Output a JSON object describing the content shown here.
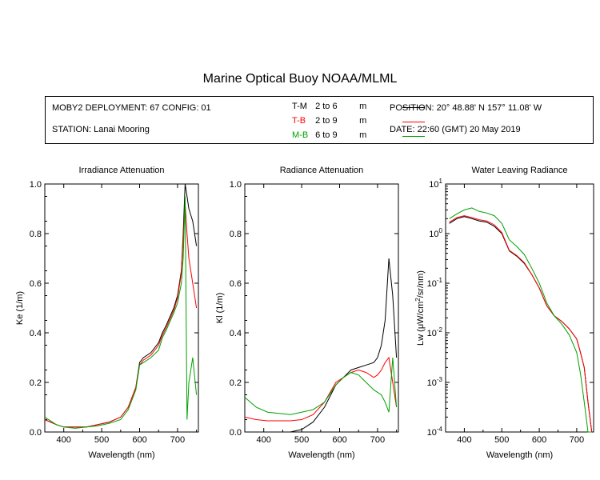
{
  "title": "Marine Optical Buoy NOAA/MLML",
  "info": {
    "deployment": "MOBY2 DEPLOYMENT: 67 CONFIG: 01",
    "station": "STATION: Lanai Mooring",
    "position": "POSITION: 20° 48.88' N   157° 11.08' W",
    "date": "DATE: 22:60 (GMT) 20 May 2019"
  },
  "legend": [
    {
      "code": "T-M",
      "range": "2 to 6",
      "unit": "m",
      "color": "#000000"
    },
    {
      "code": "T-B",
      "range": "2 to 9",
      "unit": "m",
      "color": "#ff0000"
    },
    {
      "code": "M-B",
      "range": "6 to 9",
      "unit": "m",
      "color": "#00a000"
    }
  ],
  "chart_data": [
    {
      "type": "line",
      "title": "Irradiance Attenuation",
      "xlabel": "Wavelength (nm)",
      "ylabel": "Ke  (1/m)",
      "xlim": [
        350,
        755
      ],
      "ylim": [
        0,
        1.0
      ],
      "xticks": [
        400,
        500,
        600,
        700
      ],
      "yticks": [
        0.0,
        0.2,
        0.4,
        0.6,
        0.8,
        1.0
      ],
      "yticklabels": [
        "0.0",
        "0.2",
        "0.4",
        "0.6",
        "0.8",
        "1.0"
      ],
      "series": [
        {
          "name": "T-M",
          "color": "#000000",
          "x": [
            350,
            380,
            400,
            430,
            460,
            490,
            520,
            550,
            570,
            590,
            600,
            610,
            630,
            650,
            660,
            670,
            690,
            700,
            710,
            715,
            720,
            725,
            730,
            740,
            750
          ],
          "y": [
            0.05,
            0.03,
            0.02,
            0.02,
            0.02,
            0.03,
            0.04,
            0.06,
            0.1,
            0.18,
            0.28,
            0.3,
            0.32,
            0.36,
            0.4,
            0.43,
            0.5,
            0.55,
            0.65,
            0.8,
            1.0,
            0.95,
            0.9,
            0.85,
            0.75
          ]
        },
        {
          "name": "T-B",
          "color": "#ff0000",
          "x": [
            350,
            380,
            400,
            430,
            460,
            490,
            520,
            550,
            570,
            590,
            600,
            610,
            630,
            650,
            660,
            670,
            690,
            700,
            710,
            715,
            720,
            725,
            730,
            740,
            750
          ],
          "y": [
            0.05,
            0.03,
            0.02,
            0.02,
            0.02,
            0.03,
            0.04,
            0.06,
            0.1,
            0.18,
            0.27,
            0.29,
            0.31,
            0.35,
            0.39,
            0.42,
            0.49,
            0.54,
            0.64,
            0.78,
            0.92,
            0.8,
            0.7,
            0.6,
            0.5
          ]
        },
        {
          "name": "M-B",
          "color": "#00a000",
          "x": [
            350,
            380,
            400,
            430,
            460,
            490,
            520,
            550,
            570,
            590,
            600,
            610,
            630,
            650,
            660,
            670,
            690,
            700,
            710,
            715,
            720,
            725,
            730,
            740,
            750
          ],
          "y": [
            0.06,
            0.03,
            0.02,
            0.015,
            0.02,
            0.025,
            0.035,
            0.05,
            0.09,
            0.17,
            0.27,
            0.28,
            0.3,
            0.33,
            0.38,
            0.41,
            0.48,
            0.52,
            0.6,
            0.7,
            0.95,
            0.05,
            0.2,
            0.3,
            0.15
          ]
        }
      ]
    },
    {
      "type": "line",
      "title": "Radiance Attenuation",
      "xlabel": "Wavelength (nm)",
      "ylabel": "Kl  (1/m)",
      "xlim": [
        350,
        755
      ],
      "ylim": [
        0,
        1.0
      ],
      "xticks": [
        400,
        500,
        600,
        700
      ],
      "yticks": [
        0.0,
        0.2,
        0.4,
        0.6,
        0.8,
        1.0
      ],
      "yticklabels": [
        "0.0",
        "0.2",
        "0.4",
        "0.6",
        "0.8",
        "1.0"
      ],
      "series": [
        {
          "name": "T-M",
          "color": "#000000",
          "x": [
            350,
            380,
            410,
            440,
            470,
            500,
            530,
            560,
            590,
            610,
            630,
            650,
            670,
            690,
            700,
            710,
            720,
            730,
            740,
            750
          ],
          "y": [
            0.0,
            0.0,
            0.0,
            0.0,
            0.0,
            0.01,
            0.04,
            0.1,
            0.19,
            0.22,
            0.25,
            0.26,
            0.27,
            0.28,
            0.3,
            0.35,
            0.45,
            0.7,
            0.55,
            0.3
          ]
        },
        {
          "name": "T-B",
          "color": "#ff0000",
          "x": [
            350,
            380,
            410,
            440,
            470,
            500,
            530,
            560,
            590,
            610,
            630,
            650,
            670,
            690,
            700,
            710,
            720,
            730,
            740,
            750
          ],
          "y": [
            0.06,
            0.05,
            0.045,
            0.045,
            0.045,
            0.05,
            0.07,
            0.12,
            0.2,
            0.22,
            0.24,
            0.25,
            0.24,
            0.22,
            0.23,
            0.25,
            0.28,
            0.3,
            0.2,
            0.1
          ]
        },
        {
          "name": "M-B",
          "color": "#00a000",
          "x": [
            350,
            380,
            410,
            440,
            470,
            500,
            530,
            560,
            590,
            610,
            630,
            650,
            670,
            690,
            700,
            710,
            720,
            730,
            740,
            750
          ],
          "y": [
            0.14,
            0.1,
            0.08,
            0.075,
            0.07,
            0.08,
            0.09,
            0.12,
            0.19,
            0.22,
            0.24,
            0.23,
            0.2,
            0.17,
            0.16,
            0.15,
            0.12,
            0.08,
            0.3,
            0.1
          ]
        }
      ]
    },
    {
      "type": "line",
      "title": "Water Leaving Radiance",
      "xlabel": "Wavelength (nm)",
      "ylabel_main": "Lw  (μW/cm",
      "ylabel_sup": "2",
      "ylabel_tail": "/sr/nm)",
      "xlim": [
        350,
        745
      ],
      "ylim": [
        0.0001,
        10
      ],
      "yscale": "log",
      "xticks": [
        400,
        500,
        600,
        700
      ],
      "yticks_exp": [
        -4,
        -3,
        -2,
        -1,
        0,
        1
      ],
      "series": [
        {
          "name": "T-M",
          "color": "#000000",
          "x": [
            360,
            380,
            400,
            420,
            440,
            460,
            480,
            500,
            520,
            540,
            560,
            580,
            600,
            620,
            640,
            660,
            680,
            700,
            710,
            720,
            730,
            740
          ],
          "y": [
            1.6,
            2.0,
            2.2,
            2.0,
            1.8,
            1.7,
            1.4,
            1.0,
            0.45,
            0.35,
            0.25,
            0.15,
            0.08,
            0.035,
            0.022,
            0.017,
            0.012,
            0.0075,
            0.004,
            0.002,
            0.0004,
            0.0001
          ]
        },
        {
          "name": "T-B",
          "color": "#ff0000",
          "x": [
            360,
            380,
            400,
            420,
            440,
            460,
            480,
            500,
            520,
            540,
            560,
            580,
            600,
            620,
            640,
            660,
            680,
            700,
            710,
            720,
            730,
            740
          ],
          "y": [
            1.7,
            2.1,
            2.3,
            2.1,
            1.9,
            1.8,
            1.5,
            1.05,
            0.46,
            0.36,
            0.26,
            0.15,
            0.08,
            0.035,
            0.022,
            0.017,
            0.012,
            0.0075,
            0.004,
            0.002,
            0.0004,
            0.0001
          ]
        },
        {
          "name": "M-B",
          "color": "#00a000",
          "x": [
            360,
            380,
            400,
            420,
            440,
            460,
            480,
            500,
            520,
            540,
            560,
            580,
            600,
            620,
            640,
            660,
            680,
            700,
            710,
            720,
            730,
            740
          ],
          "y": [
            2.0,
            2.5,
            3.0,
            3.3,
            2.8,
            2.6,
            2.3,
            1.6,
            0.75,
            0.55,
            0.38,
            0.2,
            0.1,
            0.04,
            0.022,
            0.015,
            0.009,
            0.004,
            0.0015,
            0.0004,
            0.0001,
            0.0001
          ]
        }
      ]
    }
  ]
}
